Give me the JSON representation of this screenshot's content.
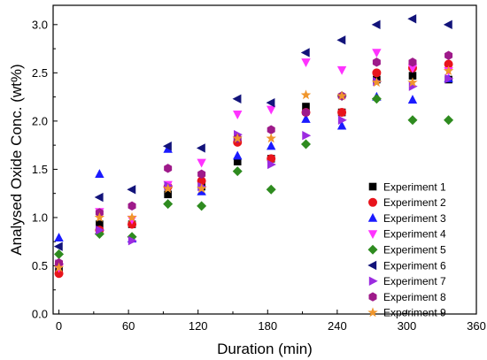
{
  "chart_data": {
    "type": "scatter",
    "title": "",
    "xlabel": "Duration (min)",
    "ylabel": "Analysed Oxide Conc. (wt%)",
    "xlim": [
      -5,
      360
    ],
    "ylim": [
      0.0,
      3.2
    ],
    "xticks": [
      0,
      60,
      120,
      180,
      240,
      300,
      360
    ],
    "yticks": [
      0.0,
      0.5,
      1.0,
      1.5,
      2.0,
      2.5,
      3.0
    ],
    "legend_position": "bottom-right",
    "x": [
      0,
      35,
      63,
      94,
      123,
      154,
      183,
      213,
      244,
      274,
      305,
      336
    ],
    "series": [
      {
        "name": "Experiment 1",
        "marker": "square",
        "color": "#000000",
        "values": [
          0.45,
          0.93,
          0.93,
          1.24,
          1.32,
          1.58,
          1.61,
          2.15,
          2.09,
          2.43,
          2.47,
          2.43
        ]
      },
      {
        "name": "Experiment 2",
        "marker": "circle",
        "color": "#e8141c",
        "values": [
          0.42,
          0.87,
          0.93,
          1.32,
          1.38,
          1.78,
          1.61,
          2.09,
          2.09,
          2.5,
          2.55,
          2.59
        ]
      },
      {
        "name": "Experiment 3",
        "marker": "triangle-up",
        "color": "#1a1aff",
        "values": [
          0.79,
          1.45,
          0.78,
          1.71,
          1.27,
          1.64,
          1.74,
          2.02,
          1.95,
          2.25,
          2.22,
          2.44
        ]
      },
      {
        "name": "Experiment 4",
        "marker": "triangle-down",
        "color": "#ff33ff",
        "values": [
          0.48,
          1.06,
          0.98,
          1.34,
          1.57,
          2.07,
          2.12,
          2.61,
          2.53,
          2.71,
          2.55,
          2.52
        ]
      },
      {
        "name": "Experiment 5",
        "marker": "diamond",
        "color": "#2e8b1f",
        "values": [
          0.62,
          0.83,
          0.8,
          1.14,
          1.12,
          1.48,
          1.29,
          1.76,
          2.26,
          2.23,
          2.01,
          2.01
        ]
      },
      {
        "name": "Experiment 6",
        "marker": "triangle-left",
        "color": "#12137a",
        "values": [
          0.7,
          1.21,
          1.29,
          1.74,
          1.72,
          2.23,
          2.19,
          2.71,
          2.84,
          3.0,
          3.06,
          3.0
        ]
      },
      {
        "name": "Experiment 7",
        "marker": "triangle-right",
        "color": "#9b2be0",
        "values": [
          0.52,
          0.87,
          0.76,
          1.33,
          1.32,
          1.86,
          1.55,
          1.85,
          2.01,
          2.41,
          2.36,
          2.44
        ]
      },
      {
        "name": "Experiment 8",
        "marker": "hexagon",
        "color": "#9e1a8a",
        "values": [
          0.53,
          1.05,
          1.12,
          1.51,
          1.45,
          1.82,
          1.91,
          2.09,
          2.26,
          2.61,
          2.61,
          2.68
        ]
      },
      {
        "name": "Experiment 9",
        "marker": "star",
        "color": "#f0962c",
        "values": [
          0.48,
          1.0,
          1.0,
          1.3,
          1.3,
          1.82,
          1.82,
          2.27,
          2.26,
          2.4,
          2.4,
          2.52
        ]
      }
    ]
  }
}
